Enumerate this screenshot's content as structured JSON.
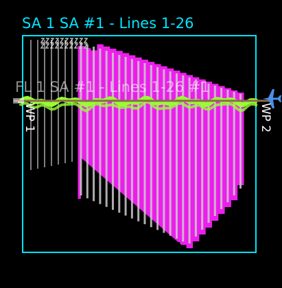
{
  "survey": {
    "area_title": "SA 1 SA #1 - Lines 1-26",
    "sweep_label": "FL 1 SA #1 - Lines 1-26 #1",
    "waypoint_start": "WP 1",
    "waypoint_end": "WP 2"
  },
  "icons": {
    "aircraft": "airplane-icon"
  },
  "colors": {
    "background": "#000000",
    "boundary": "#00e5ff",
    "coverage": "#ff22ff",
    "survey_lines": "#cccccc",
    "flight_track": "#99ff33",
    "planned_track": "#8a6a4a",
    "aircraft": "#4a8fe8",
    "label_text": "#ffffff"
  }
}
